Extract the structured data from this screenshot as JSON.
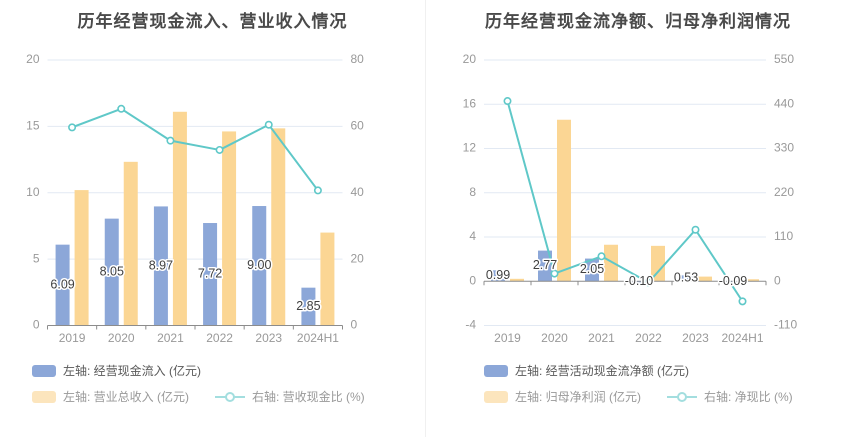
{
  "style": {
    "grid_color": "#e2e9f3",
    "axis_line_color": "#8c8c8c",
    "tick_text_color": "#999999",
    "value_label_color": "#404040",
    "value_label_halo": "#ffffff",
    "title_color": "#4a4a4a",
    "background": "#ffffff"
  },
  "chart_data": [
    {
      "type": "bar+line",
      "title": "历年经营现金流入、营业收入情况",
      "categories": [
        "2019",
        "2020",
        "2021",
        "2022",
        "2023",
        "2024H1"
      ],
      "series": [
        {
          "name": "左轴: 经营现金流入 (亿元)",
          "type": "bar",
          "axis": "left",
          "color": "#8ca7d8",
          "legend_color": "#8ca7d8",
          "legend_text_color": "#595959",
          "values": [
            6.09,
            8.05,
            8.97,
            7.72,
            9.0,
            2.85
          ],
          "labels": [
            "6.09",
            "8.05",
            "8.97",
            "7.72",
            "9.00",
            "2.85"
          ]
        },
        {
          "name": "左轴: 营业总收入 (亿元)",
          "type": "bar",
          "axis": "left",
          "color": "#fbd694",
          "legend_color": "#fce5bd",
          "legend_text_color": "#999999",
          "values": [
            10.2,
            12.33,
            16.1,
            14.62,
            14.85,
            7.0
          ]
        },
        {
          "name": "右轴: 营收现金比 (%)",
          "type": "line",
          "axis": "right",
          "color": "#5fc8c8",
          "legend_color": "#a3dedf",
          "legend_text_color": "#999999",
          "values": [
            59.7,
            65.3,
            55.7,
            52.9,
            60.5,
            40.7
          ]
        }
      ],
      "legend_rows": [
        [
          0
        ],
        [
          1,
          2
        ]
      ],
      "left_axis": {
        "min": 0,
        "max": 20,
        "ticks": [
          20,
          15,
          10,
          5,
          0
        ]
      },
      "right_axis": {
        "min": 0,
        "max": 80,
        "ticks": [
          80,
          60,
          40,
          20,
          0
        ]
      },
      "grid": true,
      "legend_position": "bottom-left"
    },
    {
      "type": "bar+line",
      "title": "历年经营现金流净额、归母净利润情况",
      "categories": [
        "2019",
        "2020",
        "2021",
        "2022",
        "2023",
        "2024H1"
      ],
      "series": [
        {
          "name": "左轴: 经营活动现金流净额 (亿元)",
          "type": "bar",
          "axis": "left",
          "color": "#8ca7d8",
          "legend_color": "#8ca7d8",
          "legend_text_color": "#595959",
          "values": [
            0.99,
            2.77,
            2.05,
            -0.1,
            0.53,
            -0.09
          ],
          "labels": [
            "0.99",
            "2.77",
            "2.05",
            "-0.10",
            "0.53",
            "-0.09"
          ]
        },
        {
          "name": "左轴: 归母净利润 (亿元)",
          "type": "bar",
          "axis": "left",
          "color": "#fbd694",
          "legend_color": "#fce5bd",
          "legend_text_color": "#999999",
          "values": [
            0.22,
            14.6,
            3.3,
            3.2,
            0.42,
            0.18
          ]
        },
        {
          "name": "右轴: 净现比 (%)",
          "type": "line",
          "axis": "right",
          "color": "#5fc8c8",
          "legend_color": "#a3dedf",
          "legend_text_color": "#999999",
          "values": [
            448,
            19,
            62,
            -3,
            128,
            -50
          ]
        }
      ],
      "legend_rows": [
        [
          0
        ],
        [
          1,
          2
        ]
      ],
      "left_axis": {
        "min": -4,
        "max": 20,
        "ticks": [
          20,
          16,
          12,
          8,
          4,
          0,
          -4
        ]
      },
      "right_axis": {
        "min": -110,
        "max": 550,
        "ticks": [
          550,
          440,
          330,
          220,
          110,
          0,
          -110
        ]
      },
      "grid": true,
      "legend_position": "bottom-left"
    }
  ]
}
